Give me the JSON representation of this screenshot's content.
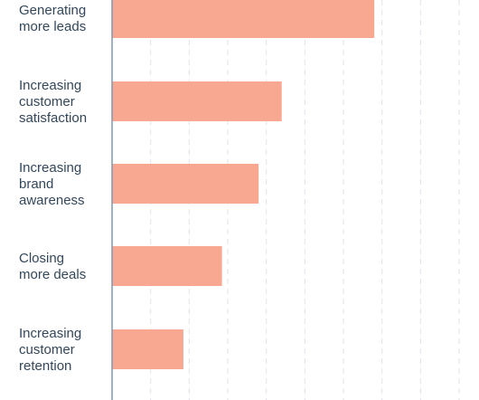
{
  "chart_data": {
    "type": "bar",
    "orientation": "horizontal",
    "categories": [
      [
        "Generating",
        "more leads"
      ],
      [
        "Increasing",
        "customer",
        "satisfaction"
      ],
      [
        "Increasing",
        "brand",
        "awareness"
      ],
      [
        "Closing",
        "more deals"
      ],
      [
        "Increasing",
        "customer",
        "retention"
      ]
    ],
    "values": [
      68,
      44,
      38,
      28.5,
      18.5
    ],
    "xlim": [
      0,
      90
    ],
    "x_grid_step": 10,
    "grid": true,
    "colors": {
      "bar": "#f8a891",
      "axis": "#7c98b6",
      "grid": "#dfe3eb",
      "label": "#33475b"
    }
  }
}
